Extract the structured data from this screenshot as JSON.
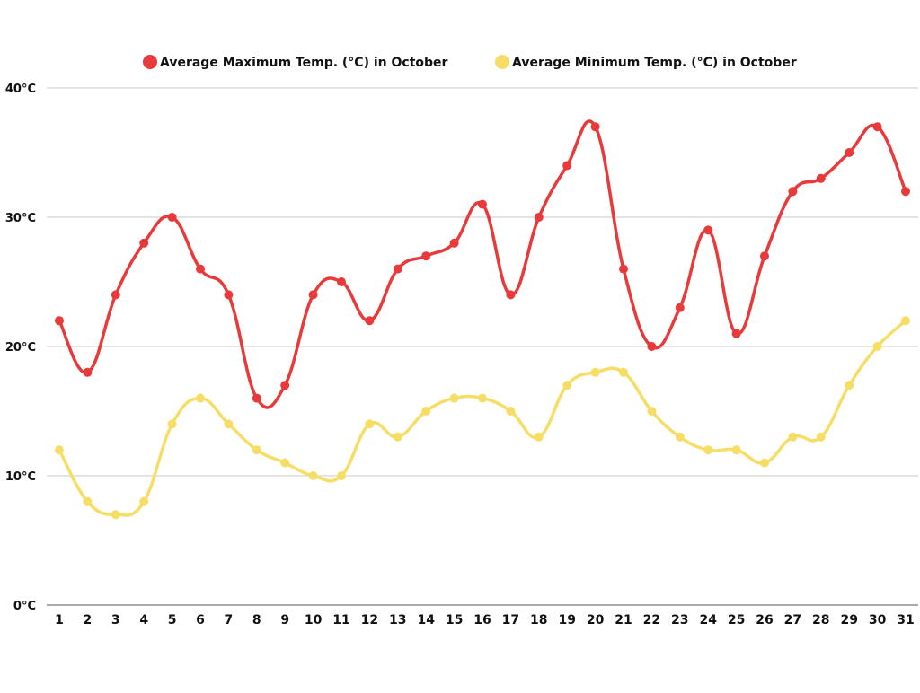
{
  "chart_data": {
    "type": "line",
    "title": "",
    "xlabel": "",
    "ylabel": "",
    "x": [
      1,
      2,
      3,
      4,
      5,
      6,
      7,
      8,
      9,
      10,
      11,
      12,
      13,
      14,
      15,
      16,
      17,
      18,
      19,
      20,
      21,
      22,
      23,
      24,
      25,
      26,
      27,
      28,
      29,
      30,
      31
    ],
    "yticks": [
      "0°C",
      "10°C",
      "20°C",
      "30°C",
      "40°C"
    ],
    "ylim": [
      0,
      40
    ],
    "grid": true,
    "legend_position": "top",
    "series": [
      {
        "name": "Average Maximum Temp. (°C) in October",
        "color": "#e83a3a",
        "values": [
          22,
          18,
          24,
          28,
          30,
          26,
          24,
          16,
          17,
          24,
          25,
          22,
          26,
          27,
          28,
          31,
          24,
          30,
          34,
          37,
          26,
          20,
          23,
          29,
          21,
          27,
          32,
          33,
          35,
          37,
          32
        ]
      },
      {
        "name": "Average Minimum Temp. (°C) in October",
        "color": "#f6de66",
        "values": [
          12,
          8,
          7,
          8,
          14,
          16,
          14,
          12,
          11,
          10,
          10,
          14,
          13,
          15,
          16,
          16,
          15,
          13,
          17,
          18,
          18,
          15,
          13,
          12,
          12,
          11,
          13,
          13,
          17,
          20,
          22
        ]
      }
    ]
  }
}
